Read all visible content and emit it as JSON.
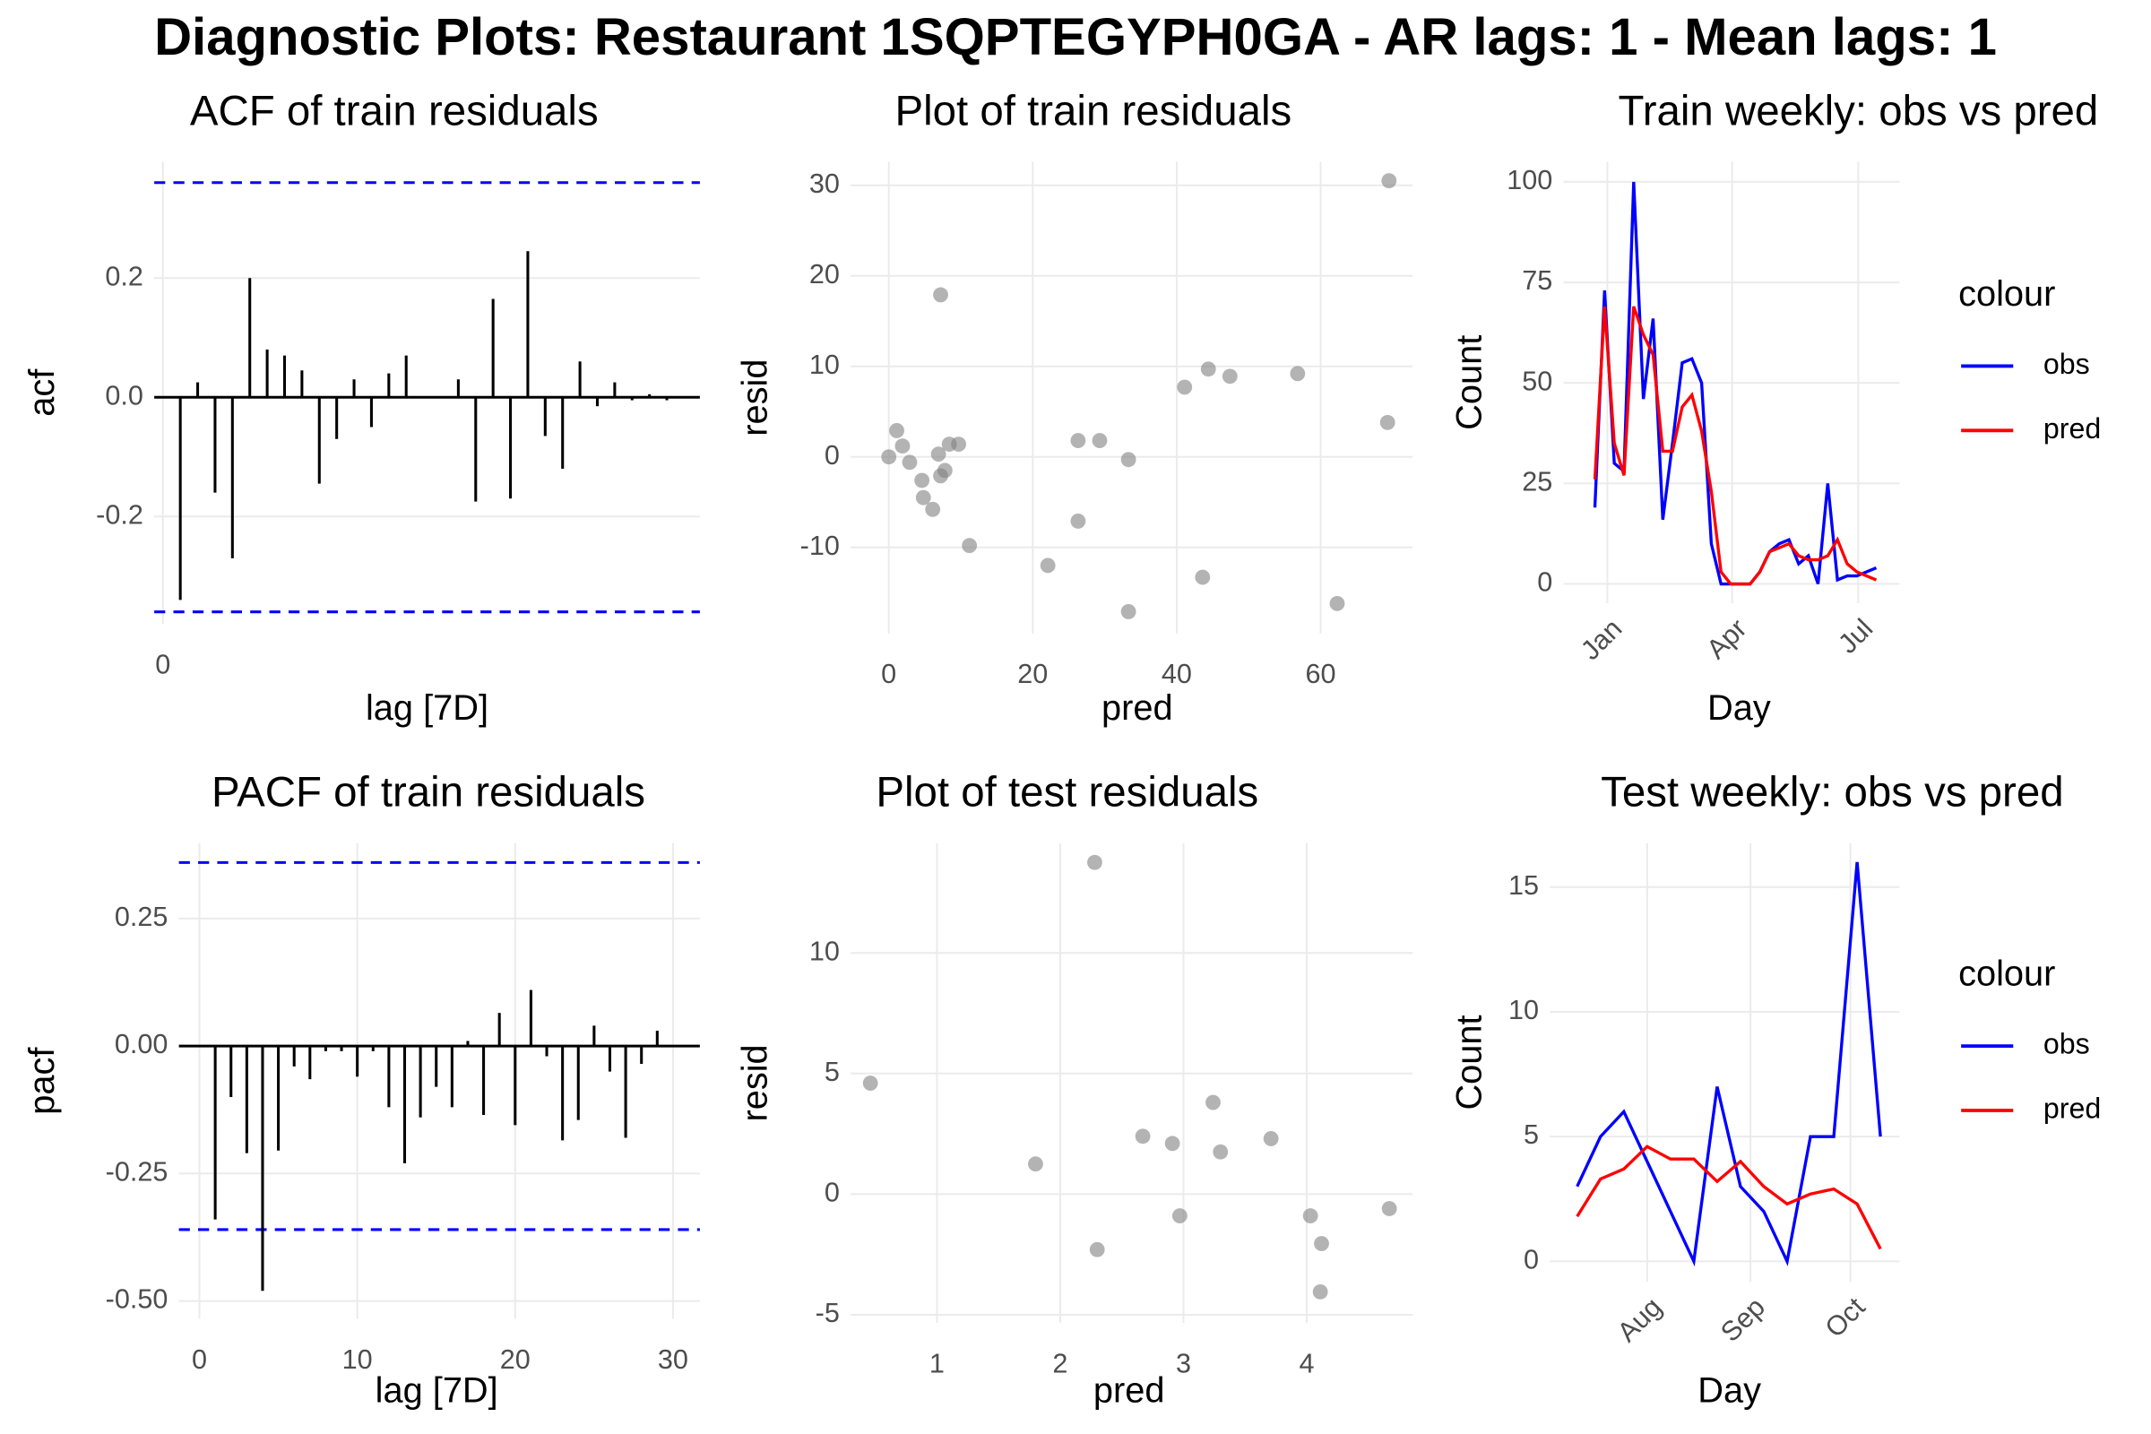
{
  "title": "Diagnostic Plots: Restaurant 1SQPTEGYPH0GA - AR lags: 1 - Mean lags: 1",
  "chart_data": [
    {
      "type": "acf",
      "title": "ACF of train residuals",
      "xlabel": "lag [7D]",
      "ylabel": "acf",
      "x": [
        1,
        2,
        3,
        4,
        5,
        6,
        7,
        8,
        9,
        10,
        11,
        12,
        13,
        14,
        15,
        16,
        17,
        18,
        19,
        20,
        21,
        22,
        23,
        24,
        25,
        26,
        27,
        28,
        29
      ],
      "values": [
        -0.34,
        0.025,
        -0.16,
        -0.27,
        0.2,
        0.08,
        0.07,
        0.045,
        -0.145,
        -0.07,
        0.03,
        -0.05,
        0.04,
        0.07,
        0.0,
        0.0,
        0.03,
        -0.175,
        0.165,
        -0.17,
        0.245,
        -0.065,
        -0.12,
        0.06,
        -0.015,
        0.025,
        -0.005,
        0.005,
        -0.005
      ],
      "color": "#000000",
      "ci": [
        0.36,
        -0.36
      ],
      "ci_color": "#0000ff",
      "xlim": [
        -0.5,
        30.9
      ],
      "xticks": [
        0
      ],
      "ylim": [
        -0.38,
        0.395
      ],
      "yticks": [
        -0.2,
        {
          "value": 0,
          "label": "0.0"
        },
        0.2
      ],
      "grid": true
    },
    {
      "type": "scatter",
      "title": "Plot of train residuals",
      "xlabel": "pred",
      "ylabel": "resid",
      "x": [
        69.5,
        7.2,
        69.3,
        41.1,
        44.4,
        47.4,
        56.8,
        0,
        1.1,
        1.9,
        2.9,
        4.6,
        4.8,
        6.1,
        6.9,
        7.2,
        7.8,
        8.4,
        9.7,
        11.2,
        22.1,
        26.3,
        26.3,
        29.3,
        33.3,
        33.3,
        43.6,
        62.3
      ],
      "values": [
        30.5,
        17.9,
        3.8,
        7.7,
        9.7,
        8.9,
        9.2,
        0,
        2.9,
        1.2,
        -0.6,
        -2.6,
        -4.5,
        -5.8,
        0.3,
        -2.1,
        -1.5,
        1.4,
        1.4,
        -9.8,
        -12,
        -7.1,
        1.8,
        1.8,
        -0.3,
        -17.1,
        -13.3,
        -16.2
      ],
      "color": "#808080",
      "xlim": [
        -5.3,
        72.8
      ],
      "xticks": [
        0,
        20,
        40,
        60
      ],
      "ylim": [
        -19.5,
        32.6
      ],
      "yticks": [
        -10,
        0,
        10,
        20,
        30
      ],
      "grid": true
    },
    {
      "type": "line",
      "title": "Train weekly: obs vs pred",
      "xlabel": "Day",
      "ylabel": "Count",
      "legend_title": "colour",
      "x": [
        -9,
        -2,
        5,
        12,
        19,
        26,
        33,
        40,
        47,
        54,
        61,
        68,
        75,
        82,
        89,
        96,
        103,
        110,
        117,
        124,
        131,
        138,
        145,
        152,
        159,
        166,
        173,
        180,
        187,
        194
      ],
      "series": [
        {
          "name": "obs",
          "color": "#0000ff",
          "values": [
            19,
            73,
            30,
            28,
            100,
            46,
            66,
            16,
            35,
            55,
            56,
            50,
            10,
            0,
            0,
            0,
            0,
            3,
            8,
            10,
            11,
            5,
            7,
            0,
            25,
            1,
            2,
            2,
            3,
            4
          ]
        },
        {
          "name": "pred",
          "color": "#ff0000",
          "values": [
            26,
            69,
            35,
            27,
            69,
            62,
            57,
            33,
            33,
            44,
            47,
            38,
            23,
            3,
            0,
            0,
            0,
            3,
            8,
            9,
            10,
            7,
            6,
            6,
            7,
            11,
            5,
            3,
            2,
            1
          ]
        }
      ],
      "xlim": [
        -31.6,
        210.7
      ],
      "xticks": [
        {
          "value": 0,
          "label": "Jan"
        },
        {
          "value": 90,
          "label": "Apr"
        },
        {
          "value": 181,
          "label": "Jul"
        }
      ],
      "ylim": [
        -4.8,
        105
      ],
      "yticks": [
        0,
        25,
        50,
        75,
        100
      ],
      "grid": true
    },
    {
      "type": "acf",
      "title": "PACF of train residuals",
      "xlabel": "lag [7D]",
      "ylabel": "pacf",
      "x": [
        1,
        2,
        3,
        4,
        5,
        6,
        7,
        8,
        9,
        10,
        11,
        12,
        13,
        14,
        15,
        16,
        17,
        18,
        19,
        20,
        21,
        22,
        23,
        24,
        25,
        26,
        27,
        28,
        29
      ],
      "values": [
        -0.34,
        -0.1,
        -0.21,
        -0.48,
        -0.205,
        -0.04,
        -0.065,
        -0.01,
        -0.01,
        -0.06,
        -0.01,
        -0.12,
        -0.23,
        -0.14,
        -0.08,
        -0.12,
        0.01,
        -0.135,
        0.065,
        -0.155,
        0.11,
        -0.02,
        -0.185,
        -0.145,
        0.04,
        -0.05,
        -0.18,
        -0.035,
        0.03
      ],
      "color": "#000000",
      "ci": [
        0.36,
        -0.36
      ],
      "ci_color": "#0000ff",
      "xlim": [
        -1.3,
        31.7
      ],
      "xticks": [
        0,
        10,
        20,
        30
      ],
      "ylim": [
        -0.535,
        0.398
      ],
      "yticks": [
        {
          "value": -0.5,
          "label": "-0.50"
        },
        {
          "value": -0.25,
          "label": "-0.25"
        },
        {
          "value": 0,
          "label": "0.00"
        },
        {
          "value": 0.25,
          "label": "0.25"
        }
      ],
      "grid": true
    },
    {
      "type": "scatter",
      "title": "Plot of test residuals",
      "xlabel": "pred",
      "ylabel": "resid",
      "x": [
        0.46,
        2.28,
        1.8,
        2.3,
        2.67,
        2.91,
        3.24,
        3.3,
        2.97,
        3.71,
        4.03,
        4.12,
        4.11,
        4.67
      ],
      "values": [
        4.6,
        13.75,
        1.25,
        -2.3,
        2.4,
        2.1,
        3.8,
        1.75,
        -0.9,
        2.3,
        -0.9,
        -2.05,
        -4.05,
        -0.6
      ],
      "color": "#808080",
      "xlim": [
        0.3,
        4.86
      ],
      "xticks": [
        1,
        2,
        3,
        4
      ],
      "ylim": [
        -5.34,
        14.55
      ],
      "yticks": [
        -5,
        0,
        5,
        10
      ],
      "grid": true
    },
    {
      "type": "line",
      "title": "Test weekly: obs vs pred",
      "xlabel": "Day",
      "ylabel": "Count",
      "legend_title": "colour",
      "x": [
        -21,
        -14,
        -7,
        0,
        7,
        14,
        21,
        28,
        35,
        42,
        49,
        56,
        63,
        70
      ],
      "series": [
        {
          "name": "obs",
          "color": "#0000ff",
          "values": [
            3,
            5,
            6,
            4,
            2,
            0,
            7,
            3,
            2,
            0,
            5,
            5,
            16,
            5
          ]
        },
        {
          "name": "pred",
          "color": "#ff0000",
          "values": [
            1.8,
            3.3,
            3.7,
            4.6,
            4.1,
            4.1,
            3.2,
            4,
            3,
            2.3,
            2.7,
            2.9,
            2.3,
            0.5
          ]
        }
      ],
      "xlim": [
        -29.2,
        75.7
      ],
      "xticks": [
        {
          "value": 0,
          "label": "Aug"
        },
        {
          "value": 31,
          "label": "Sep"
        },
        {
          "value": 61,
          "label": "Oct"
        }
      ],
      "ylim": [
        -0.82,
        16.76
      ],
      "yticks": [
        0,
        5,
        10,
        15
      ],
      "grid": true
    }
  ]
}
